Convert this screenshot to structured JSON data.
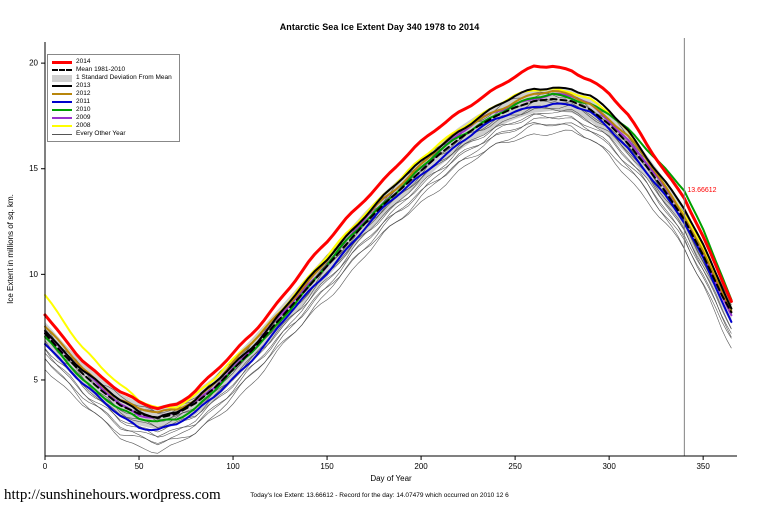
{
  "page": {
    "footer_url": "http://sunshinehours.wordpress.com",
    "footer_note": "Today's Ice Extent: 13.66612  - Record for the day: 14.07479 which occurred on 2010 12 6"
  },
  "chart_data": {
    "type": "line",
    "title": "Antarctic Sea Ice Extent Day 340 1978 to 2014",
    "xlabel": "Day of Year",
    "ylabel": "Ice Extent in millions of sq. km.",
    "xlim": [
      0,
      368
    ],
    "ylim": [
      1.4,
      21
    ],
    "x_ticks": [
      0,
      50,
      100,
      150,
      200,
      250,
      300,
      350
    ],
    "y_ticks": [
      5,
      10,
      15,
      20
    ],
    "grid": false,
    "legend_position": "top-left",
    "x": [
      0,
      10,
      20,
      30,
      40,
      50,
      60,
      70,
      80,
      90,
      100,
      110,
      120,
      130,
      140,
      150,
      160,
      170,
      180,
      190,
      200,
      210,
      220,
      230,
      240,
      250,
      260,
      270,
      280,
      290,
      300,
      310,
      320,
      330,
      340,
      350,
      360,
      365
    ],
    "series": [
      {
        "name": "2014",
        "color": "#ff0000",
        "width": 3,
        "values": [
          8.1,
          7.0,
          6.0,
          5.1,
          4.4,
          3.9,
          3.7,
          3.9,
          4.5,
          5.3,
          6.2,
          7.2,
          8.3,
          9.4,
          10.5,
          11.5,
          12.6,
          13.6,
          14.5,
          15.4,
          16.2,
          17.0,
          17.7,
          18.3,
          18.8,
          19.3,
          19.8,
          19.9,
          19.7,
          19.2,
          18.5,
          17.5,
          16.2,
          14.9,
          13.66612,
          11.7,
          9.7,
          8.7
        ]
      },
      {
        "name": "Mean 1981-2010",
        "color": "#000000",
        "width": 2,
        "dash": "6 4",
        "values": [
          7.2,
          6.2,
          5.3,
          4.5,
          3.8,
          3.4,
          3.2,
          3.4,
          3.9,
          4.6,
          5.5,
          6.4,
          7.4,
          8.4,
          9.4,
          10.4,
          11.4,
          12.4,
          13.3,
          14.1,
          14.9,
          15.7,
          16.4,
          17.0,
          17.5,
          17.9,
          18.2,
          18.3,
          18.2,
          17.8,
          17.1,
          16.2,
          15.1,
          13.9,
          12.6,
          10.9,
          9.0,
          8.2
        ]
      },
      {
        "name": "2013",
        "color": "#000000",
        "width": 2,
        "values": [
          7.4,
          6.4,
          5.5,
          4.7,
          4.0,
          3.5,
          3.3,
          3.5,
          4.0,
          4.8,
          5.7,
          6.6,
          7.6,
          8.7,
          9.7,
          10.7,
          11.8,
          12.8,
          13.7,
          14.5,
          15.3,
          16.1,
          16.8,
          17.4,
          17.9,
          18.4,
          18.8,
          18.9,
          18.8,
          18.4,
          17.7,
          16.8,
          15.6,
          14.4,
          13.1,
          11.3,
          9.4,
          8.4
        ]
      },
      {
        "name": "2012",
        "color": "#b8860b",
        "width": 2,
        "values": [
          7.5,
          6.5,
          5.6,
          4.8,
          4.1,
          3.6,
          3.4,
          3.6,
          4.1,
          4.9,
          5.8,
          6.7,
          7.7,
          8.7,
          9.7,
          10.7,
          11.7,
          12.7,
          13.6,
          14.4,
          15.2,
          16.0,
          16.7,
          17.3,
          17.8,
          18.2,
          18.5,
          18.6,
          18.5,
          18.1,
          17.4,
          16.5,
          15.4,
          14.1,
          12.8,
          11.1,
          9.2,
          8.2
        ]
      },
      {
        "name": "2011",
        "color": "#0000cd",
        "width": 2,
        "values": [
          6.8,
          5.8,
          4.8,
          4.0,
          3.3,
          2.8,
          2.7,
          2.9,
          3.4,
          4.2,
          5.1,
          6.0,
          7.0,
          8.1,
          9.1,
          10.1,
          11.2,
          12.2,
          13.1,
          13.9,
          14.7,
          15.5,
          16.2,
          16.8,
          17.3,
          17.7,
          18.0,
          18.1,
          18.0,
          17.6,
          16.9,
          16.0,
          14.9,
          13.7,
          12.4,
          10.7,
          8.8,
          7.8
        ]
      },
      {
        "name": "2010",
        "color": "#00a000",
        "width": 2,
        "values": [
          7.0,
          6.0,
          5.1,
          4.3,
          3.6,
          3.1,
          3.0,
          3.2,
          3.7,
          4.5,
          5.4,
          6.3,
          7.3,
          8.4,
          9.4,
          10.4,
          11.5,
          12.5,
          13.4,
          14.2,
          15.0,
          15.8,
          16.5,
          17.1,
          17.6,
          18.0,
          18.3,
          18.5,
          18.4,
          18.1,
          17.6,
          16.8,
          15.9,
          15.0,
          14.07479,
          12.1,
          9.9,
          8.7
        ]
      },
      {
        "name": "2009",
        "color": "#9932cc",
        "width": 2,
        "values": [
          7.3,
          6.3,
          5.4,
          4.6,
          3.9,
          3.4,
          3.2,
          3.4,
          3.9,
          4.7,
          5.6,
          6.5,
          7.5,
          8.5,
          9.5,
          10.5,
          11.6,
          12.6,
          13.5,
          14.3,
          15.1,
          15.9,
          16.6,
          17.2,
          17.7,
          18.1,
          18.4,
          18.5,
          18.4,
          18.0,
          17.3,
          16.4,
          15.3,
          14.0,
          12.7,
          11.0,
          9.1,
          8.1
        ]
      },
      {
        "name": "2008",
        "color": "#ffff00",
        "width": 2,
        "values": [
          9.0,
          7.8,
          6.6,
          5.6,
          4.7,
          4.0,
          3.7,
          3.8,
          4.3,
          5.0,
          5.9,
          6.8,
          7.8,
          8.8,
          9.8,
          10.8,
          11.9,
          12.9,
          13.8,
          14.6,
          15.4,
          16.2,
          16.9,
          17.5,
          18.0,
          18.4,
          18.7,
          18.8,
          18.7,
          18.3,
          17.6,
          16.7,
          15.5,
          14.2,
          12.9,
          11.2,
          9.3,
          8.3
        ]
      }
    ],
    "std_band": {
      "label": "1 Standard Deviation From Mean",
      "color": "#cfcfcf",
      "sd": 0.55
    },
    "other_years": {
      "label": "Every Other Year",
      "color": "#3c3c3c",
      "offsets": [
        -1.5,
        -1.25,
        -1.05,
        -0.9,
        -0.75,
        -0.6,
        -0.45,
        -0.3,
        -0.15,
        0.0,
        0.15,
        0.3
      ]
    },
    "legend": [
      {
        "label": "2014",
        "style": "thick",
        "color": "#ff0000"
      },
      {
        "label": "Mean 1981-2010",
        "style": "dash",
        "color": "#000000"
      },
      {
        "label": "1 Standard Deviation From Mean",
        "style": "band",
        "color": "#cfcfcf"
      },
      {
        "label": "2013",
        "style": "line",
        "color": "#000000"
      },
      {
        "label": "2012",
        "style": "line",
        "color": "#b8860b"
      },
      {
        "label": "2011",
        "style": "line",
        "color": "#0000cd"
      },
      {
        "label": "2010",
        "style": "line",
        "color": "#00a000"
      },
      {
        "label": "2009",
        "style": "line",
        "color": "#9932cc"
      },
      {
        "label": "2008",
        "style": "line",
        "color": "#ffff00"
      },
      {
        "label": "Every Other Year",
        "style": "thin",
        "color": "#555555"
      }
    ],
    "vline_day": 340,
    "annotation": {
      "day": 340,
      "value": 13.66612,
      "label": "13.66612",
      "color": "#ff0000"
    }
  }
}
